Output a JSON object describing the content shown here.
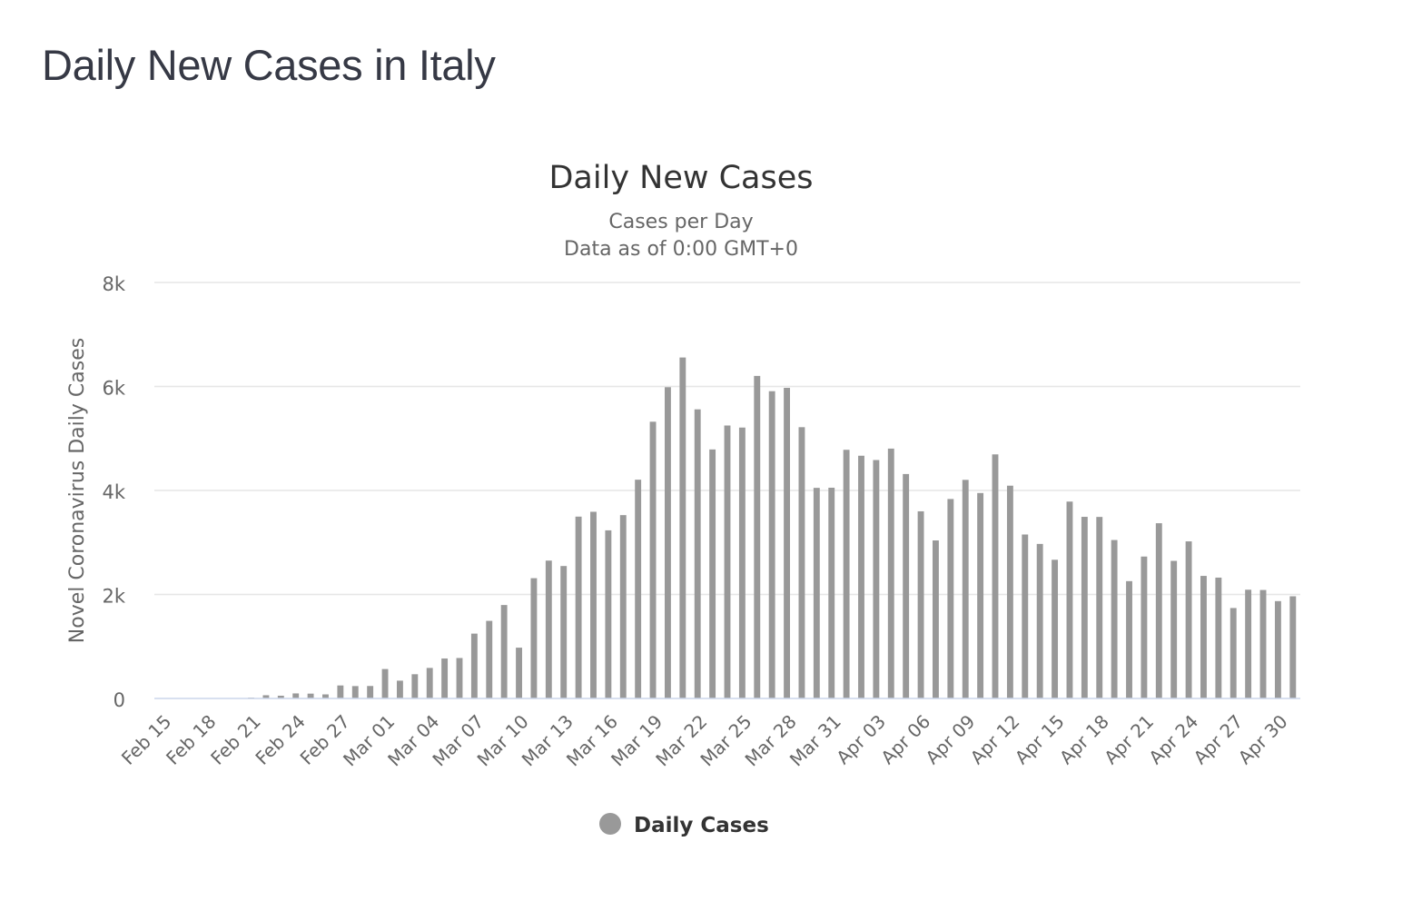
{
  "page": {
    "title": "Daily New Cases in Italy"
  },
  "colors": {
    "bar": "#999999",
    "grid": "#e6e6e6",
    "text": "#333333",
    "muted": "#666666"
  },
  "legend_icon": "circle-marker",
  "chart_data": {
    "type": "bar",
    "title": "Daily New Cases",
    "subtitle_lines": [
      "Cases per Day",
      "Data as of 0:00 GMT+0"
    ],
    "ylabel": "Novel Coronavirus Daily Cases",
    "ylim": [
      0,
      8000
    ],
    "yticks": [
      0,
      2000,
      4000,
      6000,
      8000
    ],
    "ytick_labels": [
      "0",
      "2k",
      "4k",
      "6k",
      "8k"
    ],
    "legend": {
      "position": "bottom-center"
    },
    "categories": [
      "Feb 15",
      "Feb 16",
      "Feb 17",
      "Feb 18",
      "Feb 19",
      "Feb 20",
      "Feb 21",
      "Feb 22",
      "Feb 23",
      "Feb 24",
      "Feb 25",
      "Feb 26",
      "Feb 27",
      "Feb 28",
      "Feb 29",
      "Mar 01",
      "Mar 02",
      "Mar 03",
      "Mar 04",
      "Mar 05",
      "Mar 06",
      "Mar 07",
      "Mar 08",
      "Mar 09",
      "Mar 10",
      "Mar 11",
      "Mar 12",
      "Mar 13",
      "Mar 14",
      "Mar 15",
      "Mar 16",
      "Mar 17",
      "Mar 18",
      "Mar 19",
      "Mar 20",
      "Mar 21",
      "Mar 22",
      "Mar 23",
      "Mar 24",
      "Mar 25",
      "Mar 26",
      "Mar 27",
      "Mar 28",
      "Mar 29",
      "Mar 30",
      "Mar 31",
      "Apr 01",
      "Apr 02",
      "Apr 03",
      "Apr 04",
      "Apr 05",
      "Apr 06",
      "Apr 07",
      "Apr 08",
      "Apr 09",
      "Apr 10",
      "Apr 11",
      "Apr 12",
      "Apr 13",
      "Apr 14",
      "Apr 15",
      "Apr 16",
      "Apr 17",
      "Apr 18",
      "Apr 19",
      "Apr 20",
      "Apr 21",
      "Apr 22",
      "Apr 23",
      "Apr 24",
      "Apr 25",
      "Apr 26",
      "Apr 27",
      "Apr 28",
      "Apr 29",
      "Apr 30",
      "May 01"
    ],
    "xtick_labels": [
      "Feb 15",
      "Feb 18",
      "Feb 21",
      "Feb 24",
      "Feb 27",
      "Mar 01",
      "Mar 04",
      "Mar 07",
      "Mar 10",
      "Mar 13",
      "Mar 16",
      "Mar 19",
      "Mar 22",
      "Mar 25",
      "Mar 28",
      "Mar 31",
      "Apr 03",
      "Apr 06",
      "Apr 09",
      "Apr 12",
      "Apr 15",
      "Apr 18",
      "Apr 21",
      "Apr 24",
      "Apr 27",
      "Apr 30"
    ],
    "series": [
      {
        "name": "Daily Cases",
        "values": [
          0,
          0,
          0,
          0,
          0,
          0,
          17,
          62,
          53,
          97,
          93,
          78,
          250,
          238,
          240,
          566,
          342,
          466,
          587,
          769,
          778,
          1247,
          1492,
          1797,
          977,
          2313,
          2651,
          2547,
          3497,
          3590,
          3233,
          3526,
          4207,
          5322,
          5986,
          6557,
          5560,
          4789,
          5249,
          5210,
          6203,
          5909,
          5974,
          5217,
          4050,
          4053,
          4782,
          4668,
          4585,
          4805,
          4316,
          3599,
          3039,
          3836,
          4204,
          3951,
          4694,
          4092,
          3153,
          2972,
          2667,
          3786,
          3493,
          3491,
          3047,
          2256,
          2729,
          3370,
          2646,
          3021,
          2357,
          2324,
          1739,
          2091,
          2086,
          1872,
          1965
        ]
      }
    ]
  }
}
